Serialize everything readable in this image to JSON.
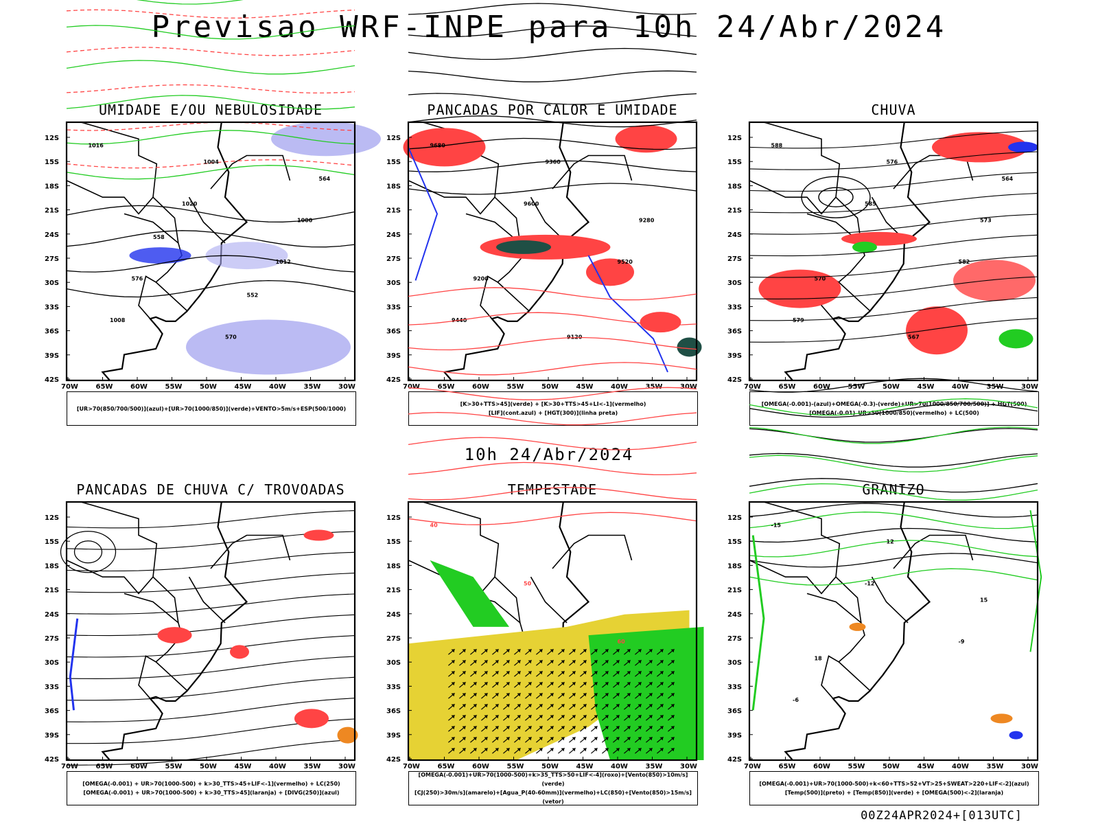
{
  "page": {
    "main_title": "Previsao WRF-INPE  para 10h 24/Abr/2024",
    "mid_title": "10h 24/Abr/2024",
    "footer": "00Z24APR2024+[013UTC]"
  },
  "axes": {
    "lat_ticks": [
      "12S",
      "15S",
      "18S",
      "21S",
      "24S",
      "27S",
      "30S",
      "33S",
      "36S",
      "39S",
      "42S"
    ],
    "lon_ticks": [
      "70W",
      "65W",
      "60W",
      "55W",
      "50W",
      "45W",
      "40W",
      "35W",
      "30W"
    ]
  },
  "colors": {
    "blue": "#2233ee",
    "lavender": "#aaaaf0",
    "green": "#22cc22",
    "red": "#ff4444",
    "dark_teal": "#1f4f45",
    "yellow": "#e6d234",
    "orange": "#ee8822",
    "black": "#000000"
  },
  "panels": [
    {
      "title": "UMIDADE E/OU NEBULOSIDADE",
      "legend": [
        "[UR>70(850/700/500)](azul)+[UR>70(1000/850)](verde)+VENTO>5m/s+ESP(500/1000)"
      ],
      "contour_labels": [
        "1016",
        "1020",
        "1012",
        "1008",
        "1004",
        "1000",
        "576",
        "570",
        "564",
        "558",
        "552"
      ]
    },
    {
      "title": "PANCADAS POR CALOR E UMIDADE",
      "legend": [
        "[K>30+TTS>45](verde) + [K>30+TTS>45+LI<-1](vermelho)",
        "[LIF](cont.azul) + [HGT(300)](linha preta)"
      ],
      "contour_labels": [
        "9680",
        "9600",
        "9520",
        "9440",
        "9360",
        "9280",
        "9200",
        "9120"
      ]
    },
    {
      "title": "CHUVA",
      "legend": [
        "[OMEGA(-0.001)-(azul)+OMEGA(-0.3)-(verde)+UR>70(1000/850/700/500)] + HGT(500)",
        "[OMEGA(-0.01)_UR>50(1000/850)(vermelho) + LC(500)"
      ],
      "contour_labels": [
        "588",
        "585",
        "582",
        "579",
        "576",
        "573",
        "570",
        "567",
        "564"
      ]
    },
    {
      "title": "PANCADAS DE CHUVA C/ TROVOADAS",
      "legend": [
        "[OMEGA(-0.001) + UR>70(1000-500) + k>30_TTS>45+LIF<-1](vermelho) + LC(250)",
        "[OMEGA(-0.001) + UR>70(1000-500) + k>30_TTS>45](laranja) + [DIVG(250)](azul)"
      ],
      "contour_labels": []
    },
    {
      "title": "TEMPESTADE",
      "legend": [
        "[OMEGA(-0.001)+UR>70(1000-500)+k>35_TTS>50+LIF<-4](roxo)+[Vento(850)>10m/s](verde)",
        "[CJ(250)>30m/s](amarelo)+[Agua_P(40-60mm)](vermelho)+LC(850)+[Vento(850)>15m/s](vetor)"
      ],
      "contour_labels": [
        "40",
        "50",
        "60"
      ]
    },
    {
      "title": "GRANIZO",
      "legend": [
        "[OMEGA(-0.001)+UR>70(1000-500)+k<60+TTS>52+VT>25+SWEAT>220+LIF<-2](azul)",
        "[Temp(500)](preto) + [Temp(850)](verde) + [OMEGA(500)<-2](laranja)"
      ],
      "contour_labels": [
        "-15",
        "-12",
        "-9",
        "-6",
        "12",
        "15",
        "18"
      ]
    }
  ]
}
